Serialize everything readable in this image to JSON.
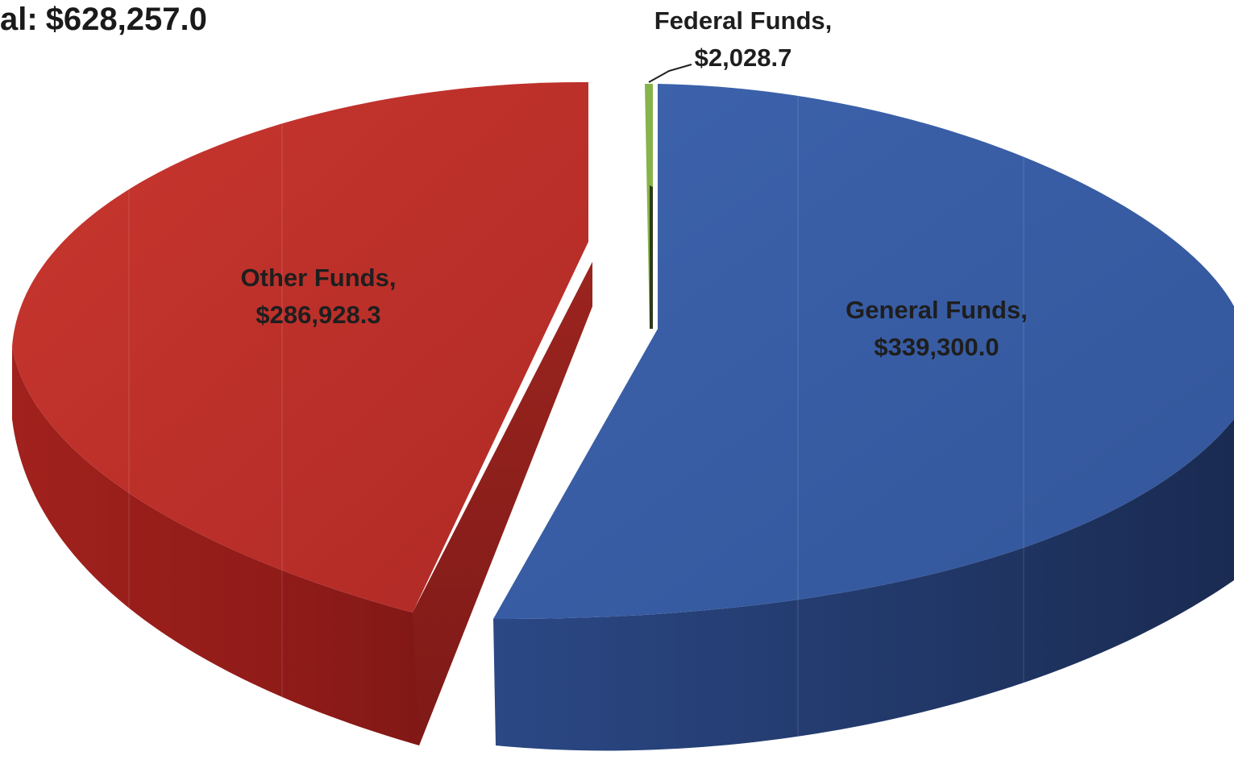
{
  "title": {
    "prefix": "al:",
    "value": "$628,257.0"
  },
  "chart_data": {
    "type": "pie",
    "title": "al: $628,257.0",
    "style": "3d-exploded",
    "total": 628257.0,
    "slices": [
      {
        "name": "Other Funds,",
        "value": 286928.3,
        "display": "$286,928.3",
        "color": "#c0322c"
      },
      {
        "name": "Federal Funds,",
        "value": 2028.7,
        "display": "$2,028.7",
        "color": "#86b34a"
      },
      {
        "name": "General Funds,",
        "value": 339300.0,
        "display": "$339,300.0",
        "color": "#3a5fa8"
      }
    ]
  }
}
